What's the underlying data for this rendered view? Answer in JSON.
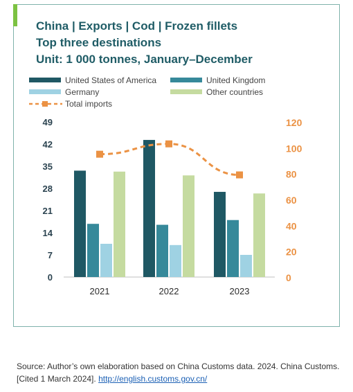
{
  "title_lines": [
    "China | Exports | Cod | Frozen fillets",
    "Top three destinations",
    "Unit: 1 000 tonnes, January–December"
  ],
  "source": {
    "text": "Source: Author’s own elaboration based on China Customs data. 2024. China Customs. [Cited 1 March 2024].",
    "link": "http://english.customs.gov.cn/"
  },
  "colors": {
    "usa": "#1f5864",
    "uk": "#36899a",
    "germany": "#9fd2e3",
    "other": "#c5dba0",
    "total": "#eb9244",
    "title": "#1f5c66"
  },
  "chart_data": {
    "type": "bar",
    "categories": [
      "2021",
      "2022",
      "2023"
    ],
    "series": [
      {
        "name": "United States of America",
        "values": [
          33.6,
          43.3,
          26.9
        ],
        "axis": "left"
      },
      {
        "name": "United Kingdom",
        "values": [
          16.8,
          16.5,
          18.0
        ],
        "axis": "left"
      },
      {
        "name": "Germany",
        "values": [
          10.5,
          10.1,
          7.0
        ],
        "axis": "left"
      },
      {
        "name": "Other countries",
        "values": [
          33.3,
          32.1,
          26.4
        ],
        "axis": "left"
      },
      {
        "name": "Total imports",
        "values": [
          95,
          103,
          79
        ],
        "axis": "right",
        "style": "dashed-line-square-markers"
      }
    ],
    "y_left": {
      "ticks": [
        "0",
        "7",
        "14",
        "21",
        "28",
        "35",
        "42",
        "49"
      ],
      "range": [
        0,
        49
      ]
    },
    "y_right": {
      "ticks": [
        "0",
        "20",
        "40",
        "60",
        "80",
        "100",
        "120"
      ],
      "range": [
        0,
        120
      ]
    },
    "legend_position": "top",
    "grid": false
  }
}
